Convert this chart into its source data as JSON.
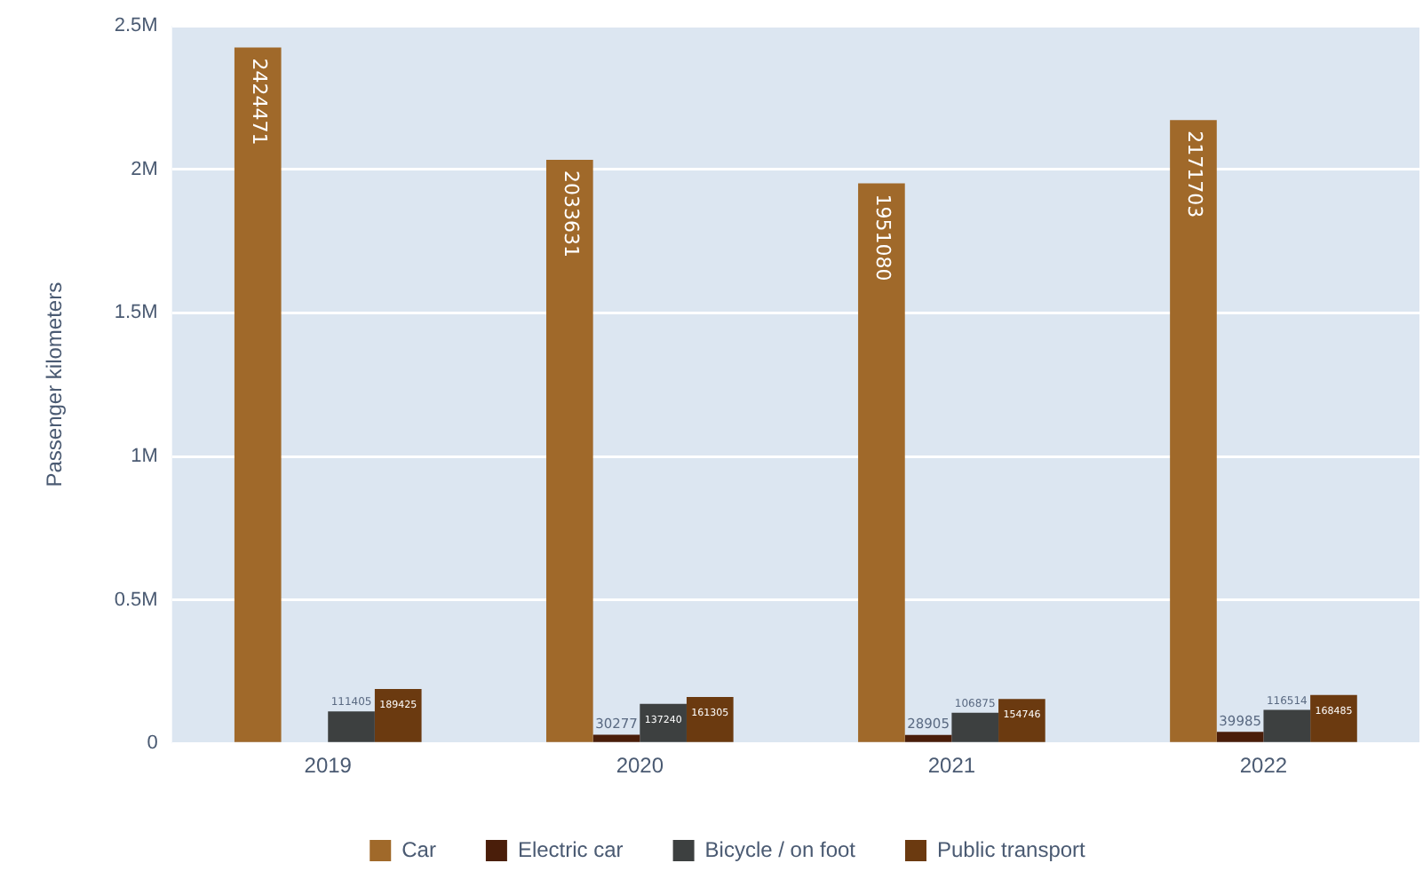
{
  "chart_data": {
    "type": "bar",
    "ylabel": "Passenger kilometers",
    "categories": [
      "2019",
      "2020",
      "2021",
      "2022"
    ],
    "series": [
      {
        "name": "Car",
        "color": "#a0692a",
        "values": [
          2424471,
          2033631,
          1951080,
          2171703
        ]
      },
      {
        "name": "Electric car",
        "color": "#4a1e0a",
        "values": [
          null,
          30277,
          28905,
          39985
        ]
      },
      {
        "name": "Bicycle / on foot",
        "color": "#3d4040",
        "values": [
          111405,
          137240,
          106875,
          116514
        ]
      },
      {
        "name": "Public transport",
        "color": "#6b3a10",
        "values": [
          189425,
          161305,
          154746,
          168485
        ]
      }
    ],
    "ylim": [
      0,
      2500000
    ],
    "yticks": [
      {
        "value": 0,
        "label": "0"
      },
      {
        "value": 500000,
        "label": "0.5M"
      },
      {
        "value": 1000000,
        "label": "1M"
      },
      {
        "value": 1500000,
        "label": "1.5M"
      },
      {
        "value": 2000000,
        "label": "2M"
      },
      {
        "value": 2500000,
        "label": "2.5M"
      }
    ],
    "grid": "y",
    "legend": "bottom",
    "data_labels": true
  }
}
